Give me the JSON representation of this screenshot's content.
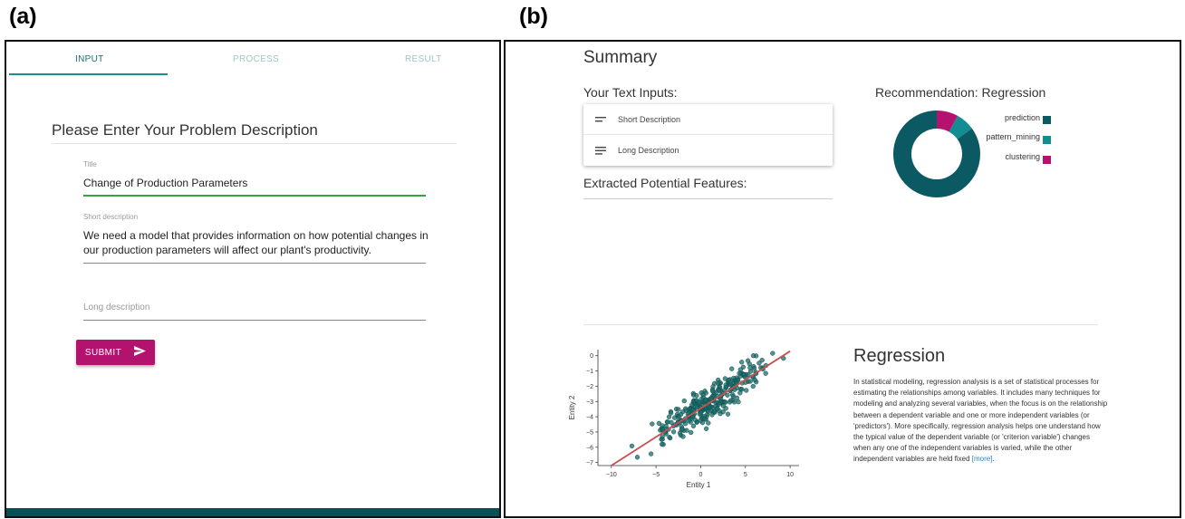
{
  "figure_labels": {
    "a": "(a)",
    "b": "(b)"
  },
  "panel_a": {
    "tabs": [
      {
        "label": "INPUT",
        "active": true
      },
      {
        "label": "PROCESS",
        "active": false
      },
      {
        "label": "RESULT",
        "active": false
      }
    ],
    "heading": "Please Enter Your Problem Description",
    "fields": {
      "title": {
        "label": "Title",
        "value": "Change of Production Parameters"
      },
      "short_description": {
        "label": "Short description",
        "value": "We need a model that provides information on how potential changes in our production parameters will affect our plant's productivity."
      },
      "long_description": {
        "placeholder": "Long description",
        "value": ""
      }
    },
    "submit_label": "SUBMIT",
    "colors": {
      "accent": "#1f8f89",
      "submit": "#b3136f",
      "focus_line": "#37a33f",
      "bottom_bar": "#0a4f55"
    }
  },
  "panel_b": {
    "summary_title": "Summary",
    "text_inputs_heading": "Your Text Inputs:",
    "text_inputs": [
      {
        "label": "Short Description",
        "icon": "short-text-icon"
      },
      {
        "label": "Long Description",
        "icon": "long-text-icon"
      }
    ],
    "features_heading": "Extracted Potential Features:",
    "recommendation_title": "Recommendation: Regression",
    "donut": {
      "slices": [
        {
          "name": "prediction",
          "value": 0.85,
          "color": "#0b5a63"
        },
        {
          "name": "pattern_mining",
          "value": 0.07,
          "color": "#138d92"
        },
        {
          "name": "clustering",
          "value": 0.08,
          "color": "#b3136f"
        }
      ]
    },
    "regression_title": "Regression",
    "regression_text": "In statistical modeling, regression analysis is a set of statistical processes for estimating the relationships among variables. It includes many techniques for modeling and analyzing several variables, when the focus is on the relationship between a dependent variable and one or more independent variables (or 'predictors'). More specifically, regression analysis helps one understand how the typical value of the dependent variable (or 'criterion variable') changes when any one of the independent variables is varied, while the other independent variables are held fixed",
    "more_link": "[more]",
    "scatter": {
      "xlabel": "Entity 1",
      "ylabel": "Entity 2",
      "xticks": [
        "−10",
        "−5",
        "0",
        "5",
        "10"
      ],
      "yticks": [
        "0",
        "−1",
        "−2",
        "−3",
        "−4",
        "−5",
        "−6",
        "−7"
      ],
      "point_color": "#1a6e6c",
      "line_color": "#c9504f"
    }
  },
  "chart_data": {
    "type": "scatter",
    "title": "",
    "xlabel": "Entity 1",
    "ylabel": "Entity 2",
    "xlim": [
      -11.5,
      11
    ],
    "ylim": [
      -7.2,
      0.4
    ],
    "fit_line": {
      "x": [
        -10,
        10
      ],
      "y": [
        -7.2,
        0.3
      ]
    },
    "points": {
      "count": 300,
      "center": [
        1.5,
        -2.8
      ],
      "note": "cloud of points along the fit line"
    }
  }
}
